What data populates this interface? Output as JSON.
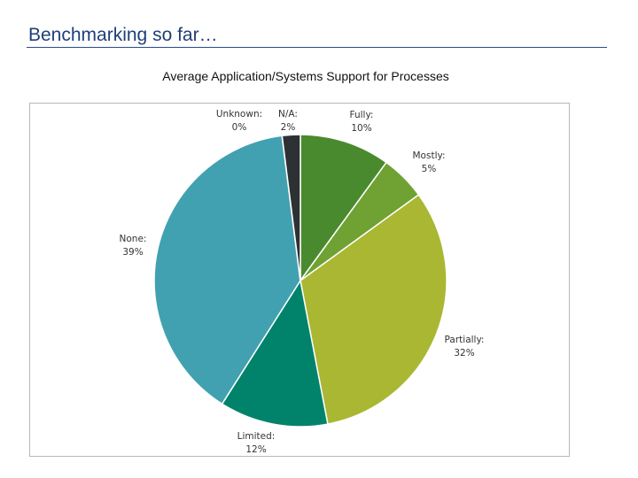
{
  "header": {
    "title": "Benchmarking so far…"
  },
  "chart_data": {
    "type": "pie",
    "title": "Average Application/Systems Support for Processes",
    "slices": [
      {
        "label": "Fully:",
        "value": 10,
        "display": "10%",
        "color": "#4a8a2e"
      },
      {
        "label": "Mostly:",
        "value": 5,
        "display": "5%",
        "color": "#6fa232"
      },
      {
        "label": "Partially:",
        "value": 32,
        "display": "32%",
        "color": "#a9b733"
      },
      {
        "label": "Limited:",
        "value": 12,
        "display": "12%",
        "color": "#00836a"
      },
      {
        "label": "None:",
        "value": 39,
        "display": "39%",
        "color": "#41a1b0"
      },
      {
        "label": "Unknown:",
        "value": 0,
        "display": "0%",
        "color": "#cfd8dc"
      },
      {
        "label": "N/A:",
        "value": 2,
        "display": "2%",
        "color": "#2e3133"
      }
    ],
    "start_angle_deg": 0,
    "direction": "clockwise",
    "legend": "none"
  }
}
